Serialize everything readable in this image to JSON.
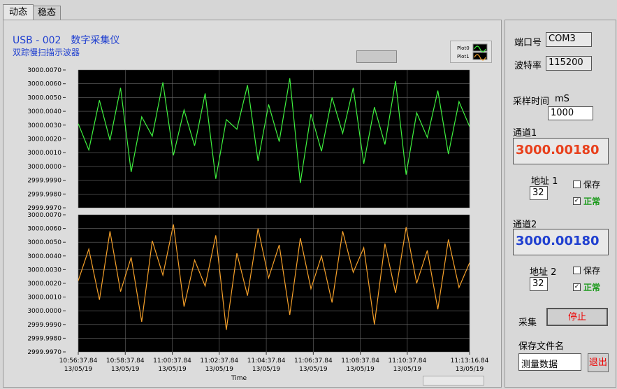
{
  "tabs": [
    "动态",
    "稳态"
  ],
  "header": {
    "title": "USB - 002　数字采集仪",
    "subtitle": "双踪慢扫描示波器"
  },
  "chart_data": [
    {
      "type": "line",
      "xlim": [
        0,
        999
      ],
      "ylim": [
        2999.997,
        3000.007
      ],
      "yticks": [
        {
          "value": 3000.007,
          "label": "3000.0070"
        },
        {
          "value": 3000.006,
          "label": "3000.0060"
        },
        {
          "value": 3000.005,
          "label": "3000.0050"
        },
        {
          "value": 3000.004,
          "label": "3000.0040"
        },
        {
          "value": 3000.003,
          "label": "3000.0030"
        },
        {
          "value": 3000.002,
          "label": "3000.0020"
        },
        {
          "value": 3000.001,
          "label": "3000.0010"
        },
        {
          "value": 3000,
          "label": "3000.0000"
        },
        {
          "value": 2999.999,
          "label": "2999.9990"
        },
        {
          "value": 2999.998,
          "label": "2999.9980"
        },
        {
          "value": 2999.997,
          "label": "2999.9970"
        }
      ],
      "x": [
        0,
        27,
        54,
        81,
        108,
        135,
        162,
        189,
        216,
        243,
        270,
        297,
        324,
        351,
        378,
        405,
        432,
        459,
        486,
        513,
        540,
        567,
        594,
        621,
        648,
        675,
        702,
        729,
        756,
        783,
        810,
        837,
        864,
        891,
        918,
        945,
        972,
        999
      ],
      "series": [
        {
          "name": "Plot0",
          "color": "#3ef03e",
          "values": [
            3000.0031,
            3000.0012,
            3000.0048,
            3000.0019,
            3000.0057,
            2999.9996,
            3000.0036,
            3000.0022,
            3000.0061,
            3000.0008,
            3000.0041,
            3000.0015,
            3000.0053,
            2999.9991,
            3000.0034,
            3000.0027,
            3000.0059,
            3000.0004,
            3000.0045,
            3000.0018,
            3000.0064,
            2999.9988,
            3000.0038,
            3000.0011,
            3000.005,
            3000.0024,
            3000.0057,
            3000.0002,
            3000.0043,
            3000.0016,
            3000.0062,
            2999.9994,
            3000.0039,
            3000.0021,
            3000.0055,
            3000.0009,
            3000.0047,
            3000.0029
          ]
        }
      ]
    },
    {
      "type": "line",
      "xlim": [
        0,
        999
      ],
      "xlabel": "Time",
      "xticks": [
        {
          "value": 0,
          "label": "10:56:37.84"
        },
        {
          "value": 120,
          "label": "10:58:37.84"
        },
        {
          "value": 240,
          "label": "11:00:37.84"
        },
        {
          "value": 360,
          "label": "11:02:37.84"
        },
        {
          "value": 480,
          "label": "11:04:37.84"
        },
        {
          "value": 600,
          "label": "11:06:37.84"
        },
        {
          "value": 720,
          "label": "11:08:37.84"
        },
        {
          "value": 840,
          "label": "11:10:37.84"
        },
        {
          "value": 999,
          "label": "11:13:16.84"
        }
      ],
      "xtick_dates": [
        "13/05/19",
        "13/05/19",
        "13/05/19",
        "13/05/19",
        "13/05/19",
        "13/05/19",
        "13/05/19",
        "13/05/19",
        "13/05/19"
      ],
      "ylim": [
        2999.997,
        3000.007
      ],
      "yticks": [
        {
          "value": 3000.007,
          "label": "3000.0070"
        },
        {
          "value": 3000.006,
          "label": "3000.0060"
        },
        {
          "value": 3000.005,
          "label": "3000.0050"
        },
        {
          "value": 3000.004,
          "label": "3000.0040"
        },
        {
          "value": 3000.003,
          "label": "3000.0030"
        },
        {
          "value": 3000.002,
          "label": "3000.0020"
        },
        {
          "value": 3000.001,
          "label": "3000.0010"
        },
        {
          "value": 3000,
          "label": "3000.0000"
        },
        {
          "value": 2999.999,
          "label": "2999.9990"
        },
        {
          "value": 2999.998,
          "label": "2999.9980"
        },
        {
          "value": 2999.997,
          "label": "2999.9970"
        }
      ],
      "x": [
        0,
        27,
        54,
        81,
        108,
        135,
        162,
        189,
        216,
        243,
        270,
        297,
        324,
        351,
        378,
        405,
        432,
        459,
        486,
        513,
        540,
        567,
        594,
        621,
        648,
        675,
        702,
        729,
        756,
        783,
        810,
        837,
        864,
        891,
        918,
        945,
        972,
        999
      ],
      "series": [
        {
          "name": "Plot1",
          "color": "#f5a02a",
          "values": [
            3000.0022,
            3000.0045,
            3000.0008,
            3000.0058,
            3000.0014,
            3000.0039,
            2999.9992,
            3000.0051,
            3000.0026,
            3000.0063,
            3000.0003,
            3000.0037,
            3000.0018,
            3000.0055,
            2999.9986,
            3000.0042,
            3000.0011,
            3000.006,
            3000.0024,
            3000.0048,
            2999.9997,
            3000.0053,
            3000.0016,
            3000.004,
            3000.0006,
            3000.0058,
            3000.0028,
            3000.0046,
            2999.999,
            3000.0049,
            3000.0013,
            3000.0061,
            3000.002,
            3000.0044,
            3000.0001,
            3000.0052,
            3000.0017,
            3000.0035
          ]
        }
      ]
    }
  ],
  "controls": {
    "port_label": "端口号",
    "port": "COM3",
    "baud_label": "波特率",
    "baud": "115200",
    "sample_label": "采样时间",
    "sample_unit": "mS",
    "sample": "1000",
    "ch1_label": "通道1",
    "ch1": "3000.00180",
    "addr1_label": "地址 1",
    "addr1": "32",
    "save1": "保存",
    "ok1": "正常",
    "ch2_label": "通道2",
    "ch2": "3000.00180",
    "addr2_label": "地址 2",
    "addr2": "32",
    "save2": "保存",
    "ok2": "正常",
    "acquire_label": "采集",
    "stop": "停止",
    "file_label": "保存文件名",
    "file": "测量数据",
    "exit": "退出"
  }
}
